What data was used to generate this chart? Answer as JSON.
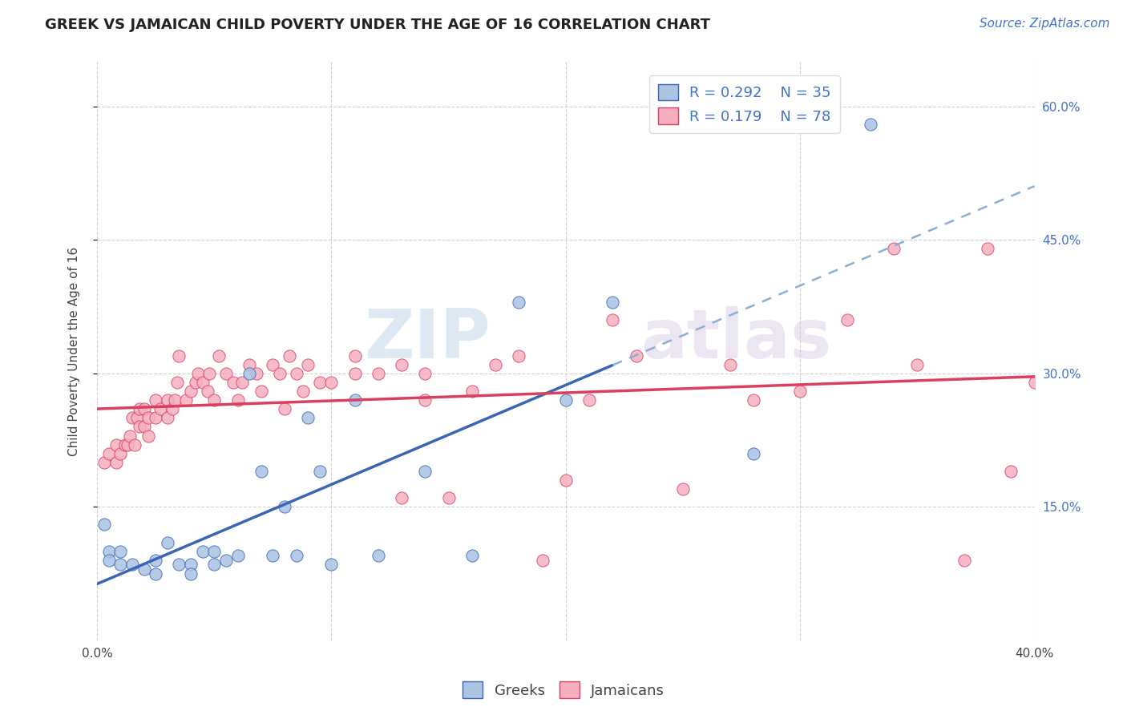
{
  "title": "GREEK VS JAMAICAN CHILD POVERTY UNDER THE AGE OF 16 CORRELATION CHART",
  "source": "Source: ZipAtlas.com",
  "ylabel": "Child Poverty Under the Age of 16",
  "xlim": [
    0.0,
    0.4
  ],
  "ylim": [
    0.0,
    0.65
  ],
  "xticks": [
    0.0,
    0.1,
    0.2,
    0.3,
    0.4
  ],
  "yticks": [
    0.15,
    0.3,
    0.45,
    0.6
  ],
  "xticklabels": [
    "0.0%",
    "",
    "",
    "",
    "40.0%"
  ],
  "right_ytick_labels": [
    "15.0%",
    "30.0%",
    "45.0%",
    "60.0%"
  ],
  "watermark_part1": "ZIP",
  "watermark_part2": "atlas",
  "greek_color": "#aac4e2",
  "jamaican_color": "#f5afc0",
  "greek_line_color": "#3a65b5",
  "jamaican_line_color": "#d94060",
  "greek_R": 0.292,
  "greek_N": 35,
  "jamaican_R": 0.179,
  "jamaican_N": 78,
  "legend_label_greek": "Greeks",
  "legend_label_jamaican": "Jamaicans",
  "greek_x": [
    0.003,
    0.005,
    0.005,
    0.01,
    0.01,
    0.015,
    0.02,
    0.025,
    0.025,
    0.03,
    0.035,
    0.04,
    0.04,
    0.045,
    0.05,
    0.05,
    0.055,
    0.06,
    0.065,
    0.07,
    0.075,
    0.08,
    0.085,
    0.09,
    0.095,
    0.1,
    0.11,
    0.12,
    0.14,
    0.16,
    0.18,
    0.2,
    0.22,
    0.28,
    0.33
  ],
  "greek_y": [
    0.13,
    0.1,
    0.09,
    0.085,
    0.1,
    0.085,
    0.08,
    0.075,
    0.09,
    0.11,
    0.085,
    0.085,
    0.075,
    0.1,
    0.085,
    0.1,
    0.09,
    0.095,
    0.3,
    0.19,
    0.095,
    0.15,
    0.095,
    0.25,
    0.19,
    0.085,
    0.27,
    0.095,
    0.19,
    0.095,
    0.38,
    0.27,
    0.38,
    0.21,
    0.58
  ],
  "jamaican_x": [
    0.003,
    0.005,
    0.008,
    0.008,
    0.01,
    0.012,
    0.013,
    0.014,
    0.015,
    0.016,
    0.017,
    0.018,
    0.018,
    0.02,
    0.02,
    0.022,
    0.022,
    0.025,
    0.025,
    0.027,
    0.03,
    0.03,
    0.032,
    0.033,
    0.034,
    0.035,
    0.038,
    0.04,
    0.042,
    0.043,
    0.045,
    0.047,
    0.048,
    0.05,
    0.052,
    0.055,
    0.058,
    0.06,
    0.062,
    0.065,
    0.068,
    0.07,
    0.075,
    0.078,
    0.08,
    0.082,
    0.085,
    0.088,
    0.09,
    0.095,
    0.1,
    0.11,
    0.11,
    0.12,
    0.13,
    0.13,
    0.14,
    0.14,
    0.15,
    0.16,
    0.17,
    0.18,
    0.19,
    0.2,
    0.21,
    0.22,
    0.23,
    0.25,
    0.27,
    0.28,
    0.3,
    0.32,
    0.34,
    0.35,
    0.37,
    0.38,
    0.39,
    0.4
  ],
  "jamaican_y": [
    0.2,
    0.21,
    0.2,
    0.22,
    0.21,
    0.22,
    0.22,
    0.23,
    0.25,
    0.22,
    0.25,
    0.24,
    0.26,
    0.24,
    0.26,
    0.23,
    0.25,
    0.25,
    0.27,
    0.26,
    0.25,
    0.27,
    0.26,
    0.27,
    0.29,
    0.32,
    0.27,
    0.28,
    0.29,
    0.3,
    0.29,
    0.28,
    0.3,
    0.27,
    0.32,
    0.3,
    0.29,
    0.27,
    0.29,
    0.31,
    0.3,
    0.28,
    0.31,
    0.3,
    0.26,
    0.32,
    0.3,
    0.28,
    0.31,
    0.29,
    0.29,
    0.3,
    0.32,
    0.3,
    0.31,
    0.16,
    0.27,
    0.3,
    0.16,
    0.28,
    0.31,
    0.32,
    0.09,
    0.18,
    0.27,
    0.36,
    0.32,
    0.17,
    0.31,
    0.27,
    0.28,
    0.36,
    0.44,
    0.31,
    0.09,
    0.44,
    0.19,
    0.29
  ],
  "title_fontsize": 13,
  "axis_label_fontsize": 11,
  "tick_fontsize": 11,
  "legend_fontsize": 13,
  "source_fontsize": 11,
  "background_color": "#ffffff",
  "grid_color": "#cccccc"
}
